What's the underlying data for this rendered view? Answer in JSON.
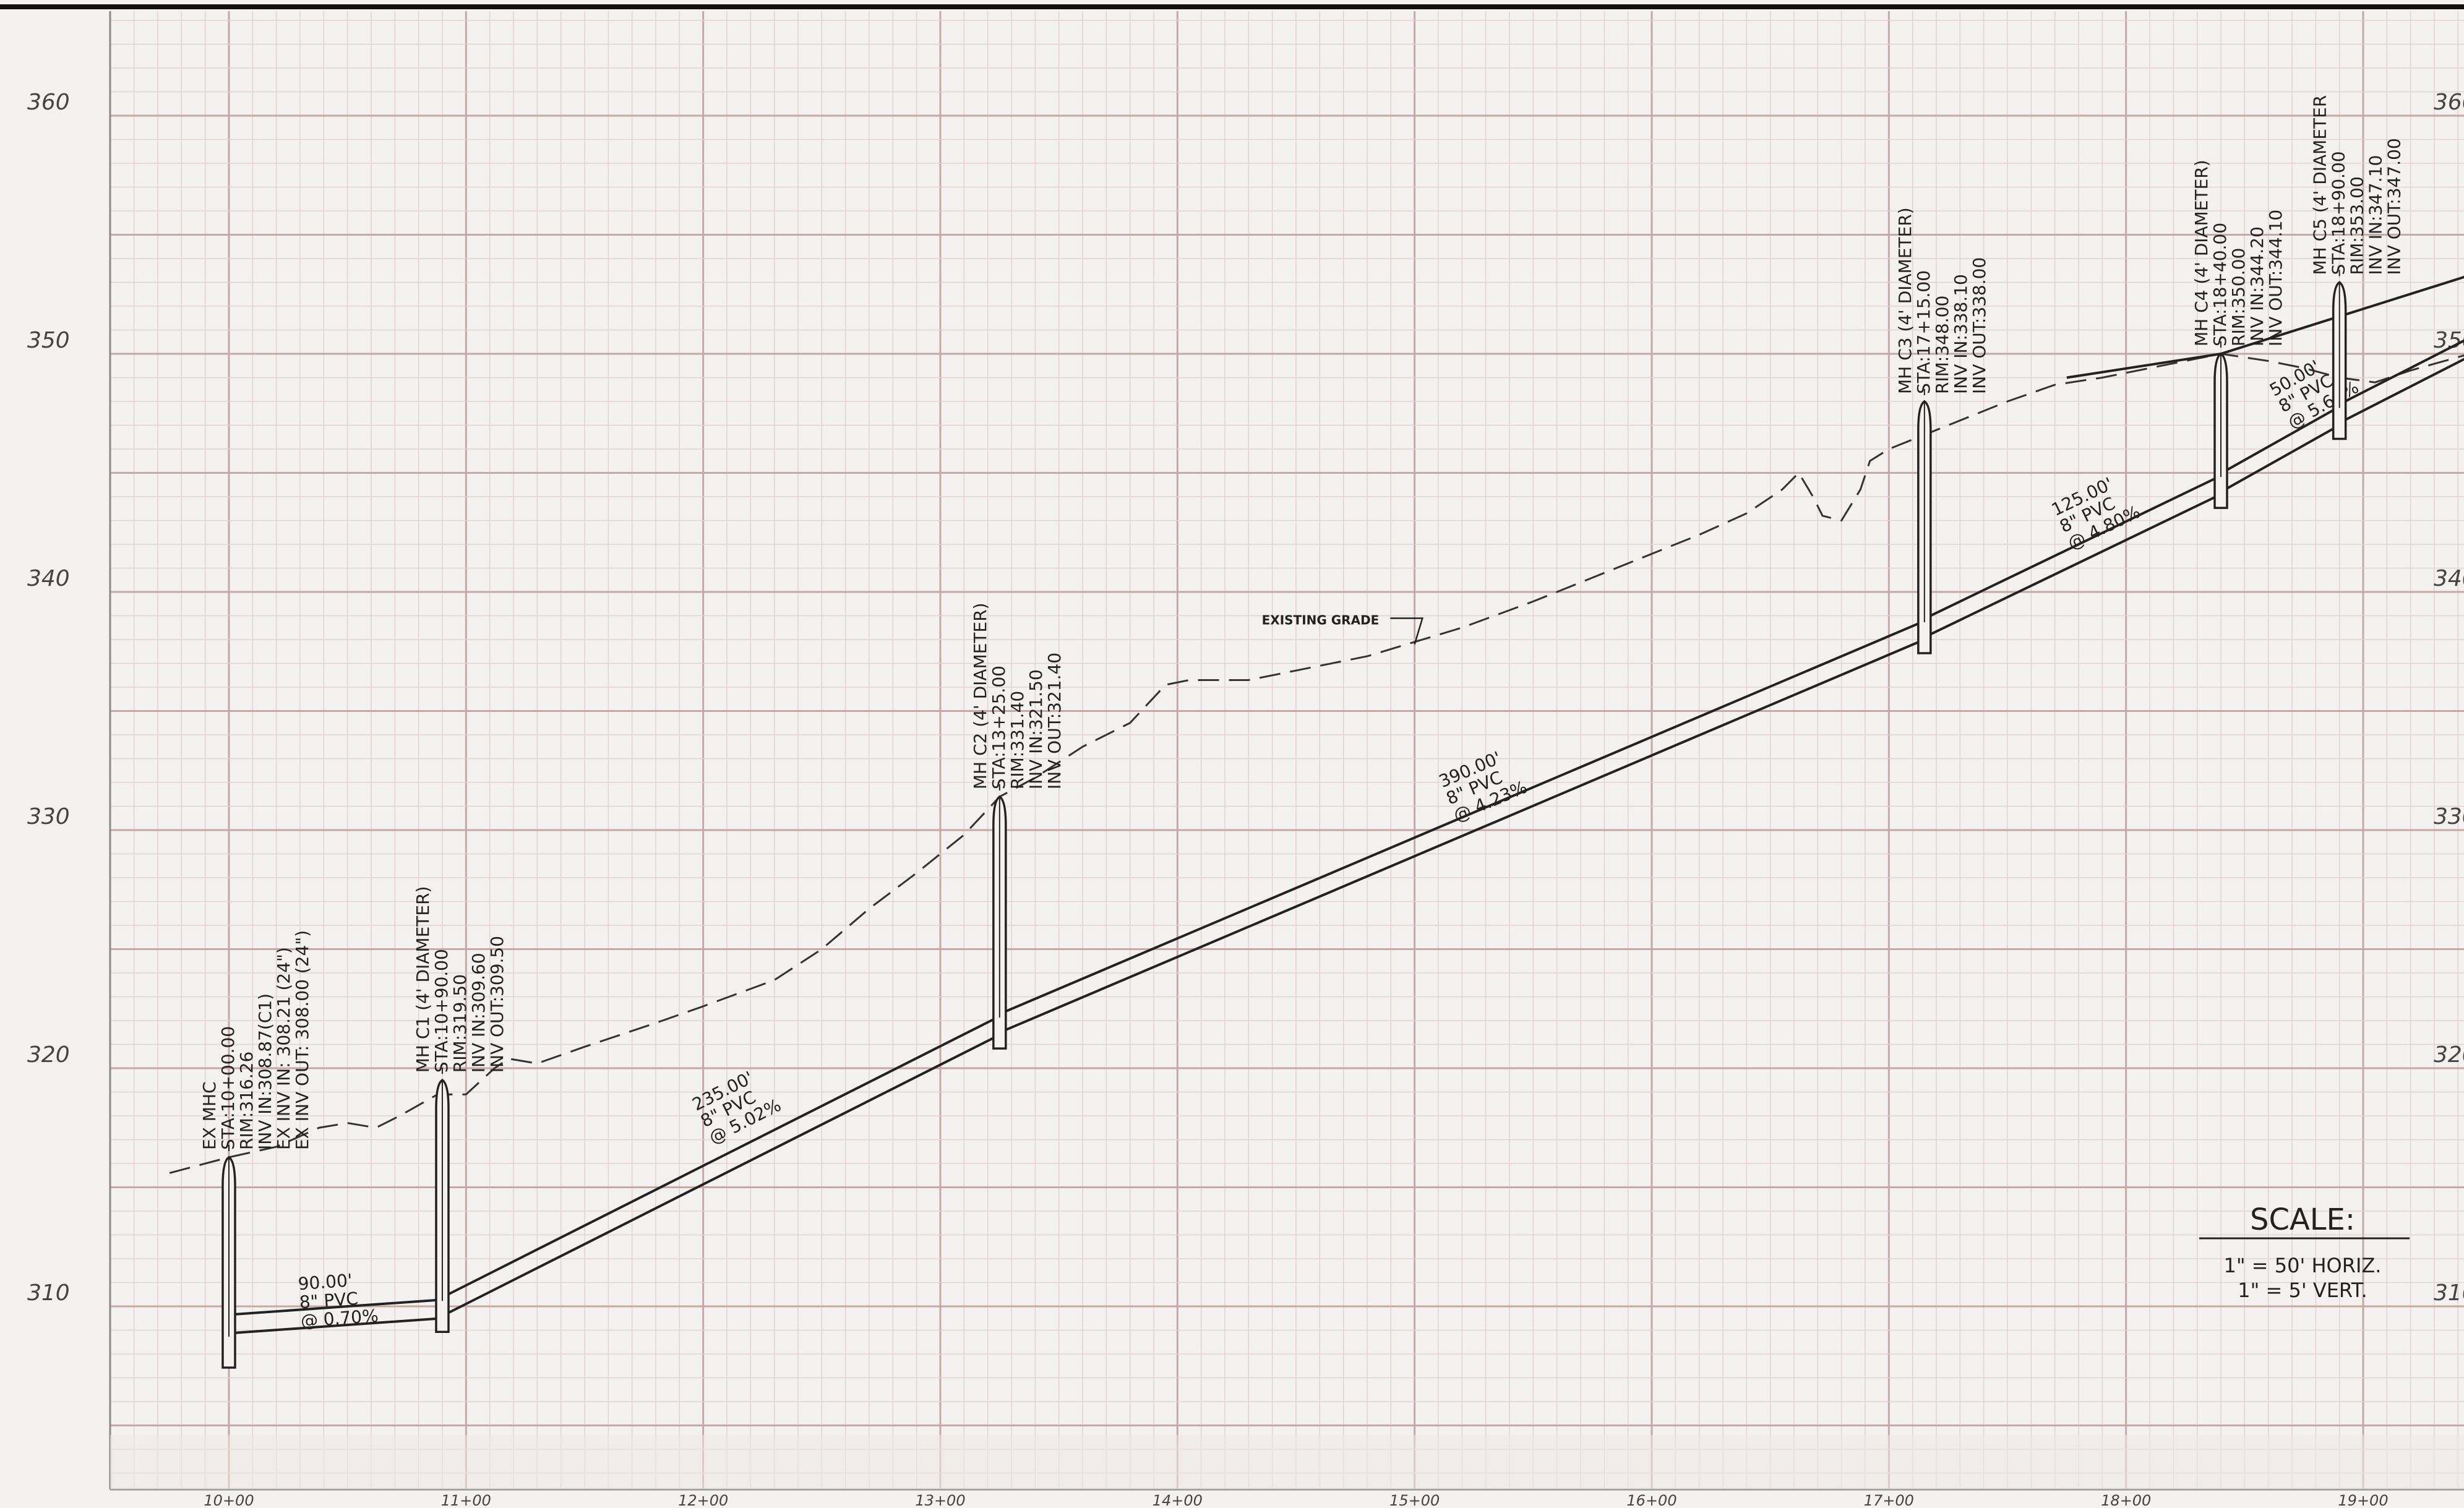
{
  "sheet": {
    "elevation_axis": {
      "min": 303.5,
      "max": 365,
      "labels": [
        310,
        320,
        330,
        340,
        350,
        360
      ]
    },
    "station_axis": {
      "min": 9.5,
      "max": 19.45,
      "labels": [
        {
          "v": 10,
          "t": "10+00"
        },
        {
          "v": 11,
          "t": "11+00"
        },
        {
          "v": 12,
          "t": "12+00"
        },
        {
          "v": 13,
          "t": "13+00"
        },
        {
          "v": 14,
          "t": "14+00"
        },
        {
          "v": 15,
          "t": "15+00"
        },
        {
          "v": 16,
          "t": "16+00"
        },
        {
          "v": 17,
          "t": "17+00"
        },
        {
          "v": 18,
          "t": "18+00"
        },
        {
          "v": 19,
          "t": "19+00"
        }
      ]
    },
    "colors": {
      "paper": "#f3f2f0",
      "grid_major": "#c7a8a5",
      "grid_minor": "#e2d3d1",
      "ink": "#222222"
    }
  },
  "manholes": [
    {
      "sta": 10.0,
      "rim": 316.26,
      "inv": 308.0,
      "lines": [
        "EX MHC",
        "STA:10+00.00",
        "RIM:316.26",
        "INV IN:308.87(C1)",
        "EX INV IN: 308.21 (24\")",
        "EX INV OUT: 308.00 (24\")"
      ]
    },
    {
      "sta": 10.9,
      "rim": 319.5,
      "inv": 309.5,
      "lines": [
        "MH C1 (4' DIAMETER)",
        "STA:10+90.00",
        "RIM:319.50",
        "INV IN:309.60",
        "INV OUT:309.50"
      ]
    },
    {
      "sta": 13.25,
      "rim": 331.4,
      "inv": 321.4,
      "lines": [
        "MH C2 (4' DIAMETER)",
        "STA:13+25.00",
        "RIM:331.40",
        "INV IN:321.50",
        "INV OUT:321.40"
      ]
    },
    {
      "sta": 17.15,
      "rim": 348.0,
      "inv": 338.0,
      "lines": [
        "MH C3 (4' DIAMETER)",
        "STA:17+15.00",
        "RIM:348.00",
        "INV IN:338.10",
        "INV OUT:338.00"
      ]
    },
    {
      "sta": 18.4,
      "rim": 350.0,
      "inv": 344.1,
      "lines": [
        "MH C4 (4' DIAMETER)",
        "STA:18+40.00",
        "RIM:350.00",
        "INV IN:344.20",
        "INV OUT:344.10"
      ]
    },
    {
      "sta": 18.9,
      "rim": 353.0,
      "inv": 347.0,
      "lines": [
        "MH C5 (4' DIAMETER",
        "STA:18+90.00",
        "RIM:353.00",
        "INV IN:347.10",
        "INV OUT:347.00"
      ]
    }
  ],
  "pipes": [
    {
      "from": 10.0,
      "to": 10.9,
      "inv_start": 308.87,
      "inv_end": 309.5,
      "length": "90.00'",
      "material": "8\" PVC",
      "slope": "@ 0.70%"
    },
    {
      "from": 10.9,
      "to": 13.25,
      "inv_start": 309.6,
      "inv_end": 321.4,
      "length": "235.00'",
      "material": "8\" PVC",
      "slope": "@ 5.02%"
    },
    {
      "from": 13.25,
      "to": 17.15,
      "inv_start": 321.5,
      "inv_end": 338.0,
      "length": "390.00'",
      "material": "8\" PVC",
      "slope": "@ 4.23%"
    },
    {
      "from": 17.15,
      "to": 18.4,
      "inv_start": 338.1,
      "inv_end": 344.1,
      "length": "125.00'",
      "material": "8\" PVC",
      "slope": "@ 4.80%"
    },
    {
      "from": 18.4,
      "to": 18.9,
      "inv_start": 344.2,
      "inv_end": 347.0,
      "length": "50.00'",
      "material": "8\" PVC",
      "slope": "@ 5.60%"
    },
    {
      "from": 18.9,
      "to": 19.45,
      "inv_start": 347.1,
      "inv_end": 349.9,
      "length": "",
      "material": "",
      "slope": ""
    }
  ],
  "existing_grade": {
    "label": "EXISTING GRADE",
    "points": [
      [
        9.75,
        315.6
      ],
      [
        10.0,
        316.26
      ],
      [
        10.2,
        316.7
      ],
      [
        10.38,
        317.5
      ],
      [
        10.5,
        317.7
      ],
      [
        10.62,
        317.5
      ],
      [
        10.72,
        318.0
      ],
      [
        10.88,
        318.9
      ],
      [
        11.0,
        318.9
      ],
      [
        11.12,
        320.0
      ],
      [
        11.18,
        320.4
      ],
      [
        11.3,
        320.2
      ],
      [
        11.5,
        320.9
      ],
      [
        11.8,
        321.9
      ],
      [
        12.0,
        322.6
      ],
      [
        12.3,
        323.7
      ],
      [
        12.5,
        325.0
      ],
      [
        12.7,
        326.7
      ],
      [
        12.9,
        328.2
      ],
      [
        13.1,
        329.8
      ],
      [
        13.25,
        331.4
      ],
      [
        13.4,
        332.2
      ],
      [
        13.6,
        333.5
      ],
      [
        13.8,
        334.5
      ],
      [
        13.95,
        336.1
      ],
      [
        14.05,
        336.3
      ],
      [
        14.3,
        336.3
      ],
      [
        14.5,
        336.7
      ],
      [
        14.8,
        337.3
      ],
      [
        15.0,
        337.9
      ],
      [
        15.2,
        338.5
      ],
      [
        15.5,
        339.6
      ],
      [
        15.8,
        340.8
      ],
      [
        16.0,
        341.6
      ],
      [
        16.2,
        342.4
      ],
      [
        16.4,
        343.3
      ],
      [
        16.55,
        344.3
      ],
      [
        16.62,
        345.0
      ],
      [
        16.68,
        344.0
      ],
      [
        16.72,
        343.2
      ],
      [
        16.8,
        343.0
      ],
      [
        16.88,
        344.3
      ],
      [
        16.92,
        345.5
      ],
      [
        17.0,
        346.0
      ],
      [
        17.15,
        346.6
      ],
      [
        17.3,
        347.2
      ],
      [
        17.5,
        348.0
      ],
      [
        17.7,
        348.7
      ],
      [
        17.9,
        349.0
      ],
      [
        18.1,
        349.4
      ],
      [
        18.3,
        349.8
      ],
      [
        18.4,
        350.0
      ],
      [
        18.6,
        349.7
      ],
      [
        18.75,
        349.4
      ],
      [
        18.9,
        349.0
      ],
      [
        19.05,
        348.8
      ],
      [
        19.2,
        349.3
      ],
      [
        19.45,
        350.0
      ]
    ]
  },
  "ground_profile": {
    "points": [
      [
        17.75,
        349.0
      ],
      [
        18.4,
        350.0
      ],
      [
        19.45,
        353.3
      ]
    ]
  },
  "scale": {
    "title": "SCALE:",
    "horizontal": "1\" = 50' HORIZ.",
    "vertical": "1\" = 5' VERT."
  }
}
